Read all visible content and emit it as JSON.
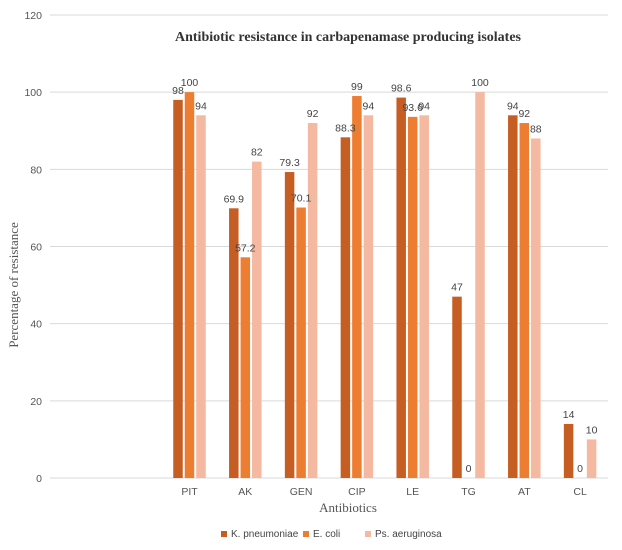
{
  "chart_data": {
    "type": "bar",
    "title": "Antibiotic resistance in carbapenamase producing isolates",
    "xlabel": "Antibiotics",
    "ylabel": "Percentage of resistance",
    "ylim": [
      0,
      120
    ],
    "yticks": [
      0,
      20,
      40,
      60,
      80,
      100,
      120
    ],
    "grid": true,
    "legend_position": "bottom",
    "categories": [
      "",
      "",
      "PIT",
      "AK",
      "GEN",
      "CIP",
      "LE",
      "TG",
      "AT",
      "CL"
    ],
    "series": [
      {
        "name": "K. pneumoniae",
        "color": "#c65e24",
        "values": [
          null,
          null,
          98,
          69.9,
          79.3,
          88.3,
          98.6,
          47,
          94,
          14
        ]
      },
      {
        "name": "E. coli",
        "color": "#ed7d31",
        "values": [
          null,
          null,
          100,
          57.2,
          70.1,
          99,
          93.6,
          0,
          92,
          0
        ]
      },
      {
        "name": "Ps. aeruginosa",
        "color": "#f4b9a0",
        "values": [
          null,
          null,
          94,
          82,
          92,
          94,
          94,
          100,
          88,
          10
        ]
      }
    ]
  }
}
